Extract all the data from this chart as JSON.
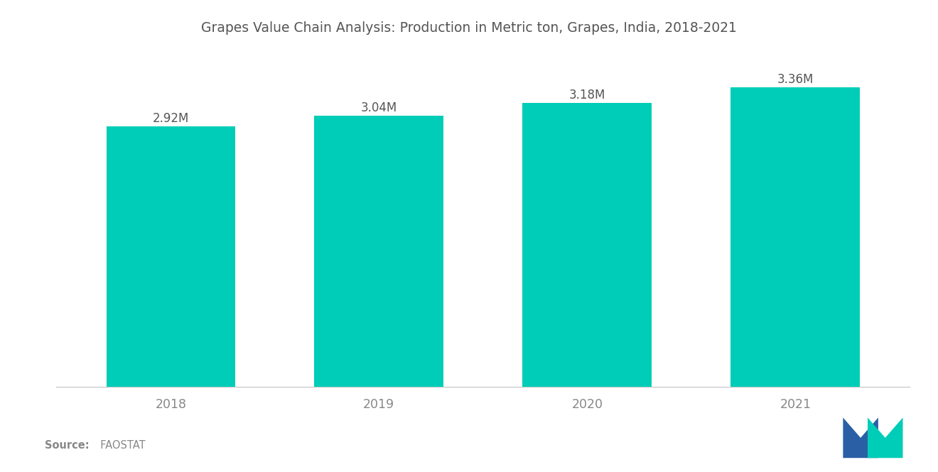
{
  "title": "Grapes Value Chain Analysis: Production in Metric ton, Grapes, India, 2018-2021",
  "categories": [
    "2018",
    "2019",
    "2020",
    "2021"
  ],
  "values": [
    2.92,
    3.04,
    3.18,
    3.36
  ],
  "labels": [
    "2.92M",
    "3.04M",
    "3.18M",
    "3.36M"
  ],
  "bar_color": "#00CDB7",
  "background_color": "#FFFFFF",
  "title_color": "#555555",
  "label_color": "#555555",
  "tick_color": "#888888",
  "source_bold": "Source:",
  "source_rest": "  FAOSTAT",
  "ylim_min": 2.6,
  "ylim_max": 3.7,
  "title_fontsize": 13.5,
  "label_fontsize": 12,
  "tick_fontsize": 12.5,
  "bar_width": 0.62,
  "logo_blue": "#2A5FA5",
  "logo_teal": "#00CDB7"
}
